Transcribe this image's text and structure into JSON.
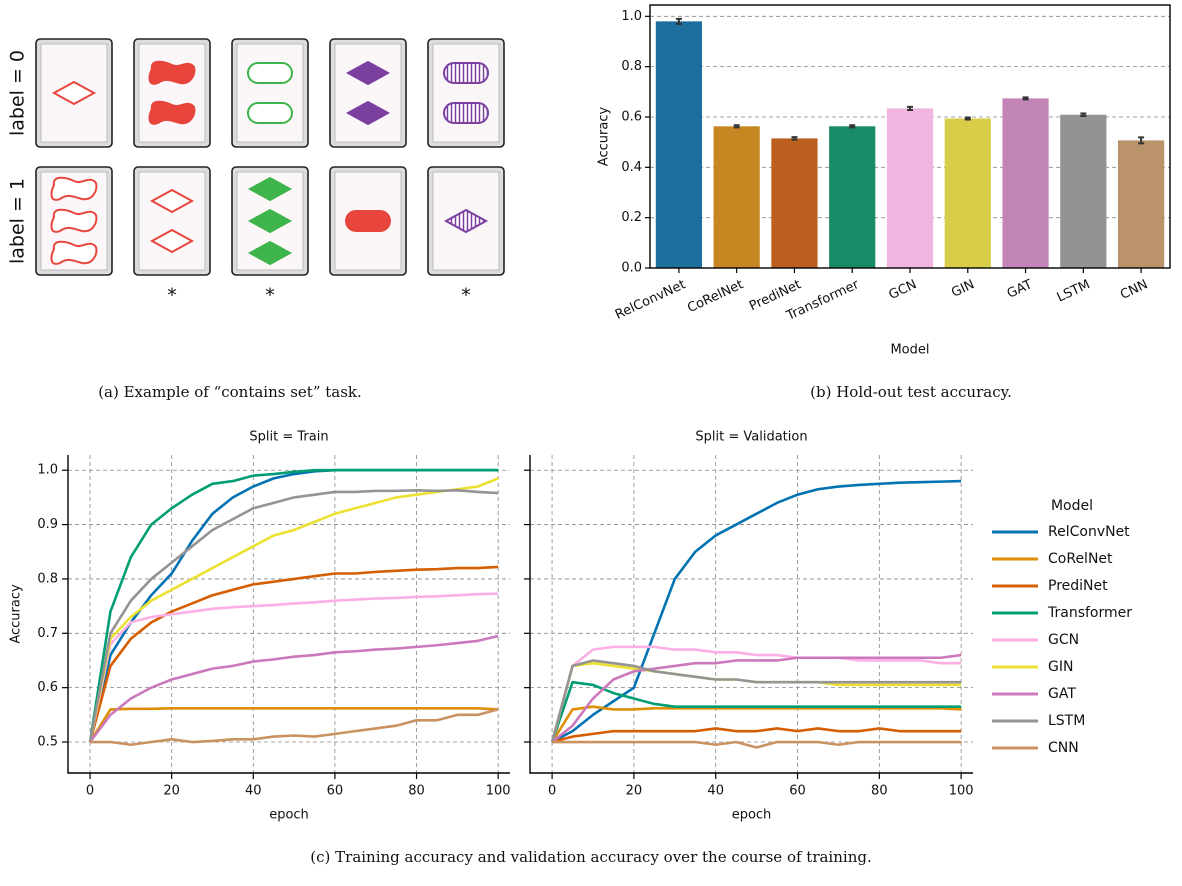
{
  "panel_a": {
    "row_labels": [
      "label = 0",
      "label = 1"
    ],
    "markers": [
      "*",
      "*",
      "*"
    ],
    "caption": "(a) Example of “contains set” task."
  },
  "chart_data": [
    {
      "type": "bar",
      "caption": "(b) Hold-out test accuracy.",
      "xlabel": "Model",
      "ylabel": "Accuracy",
      "categories": [
        "RelConvNet",
        "CoRelNet",
        "PrediNet",
        "Transformer",
        "GCN",
        "GIN",
        "GAT",
        "LSTM",
        "CNN"
      ],
      "values": [
        0.98,
        0.563,
        0.515,
        0.563,
        0.634,
        0.594,
        0.674,
        0.609,
        0.507
      ],
      "errors": [
        0.01,
        0.004,
        0.005,
        0.004,
        0.006,
        0.004,
        0.004,
        0.005,
        0.012
      ],
      "colors": [
        "#1f6f9e",
        "#c68722",
        "#bb5e1e",
        "#178a68",
        "#f0b6df",
        "#d8cd48",
        "#c384b8",
        "#939393",
        "#bb936b"
      ],
      "ylim": [
        0,
        1.045
      ],
      "yticks": [
        {
          "value": 0,
          "label": "0.0"
        },
        0.2,
        0.4,
        0.6,
        0.8,
        {
          "value": 1,
          "label": "1.0"
        }
      ],
      "grid": true
    },
    {
      "type": "line",
      "caption": "(c) Training accuracy and validation accuracy over the course of training.",
      "panel_titles": [
        "Split = Train",
        "Split = Validation"
      ],
      "xlabel": "epoch",
      "ylabel": "Accuracy",
      "legend_title": "Model",
      "legend": "right",
      "grid": true,
      "xlim": [
        -5.4,
        102.9
      ],
      "ylim": [
        0.443,
        1.028
      ],
      "xticks": [
        0,
        20,
        40,
        60,
        80,
        100
      ],
      "yticks": [
        0.5,
        0.6,
        0.7,
        0.8,
        0.9,
        {
          "value": 1,
          "label": "1.0"
        }
      ],
      "x": [
        0,
        5,
        10,
        15,
        20,
        25,
        30,
        35,
        40,
        45,
        50,
        55,
        60,
        65,
        70,
        75,
        80,
        85,
        90,
        95,
        100
      ],
      "series": [
        {
          "name": "RelConvNet",
          "color": "#0173b2",
          "values": [
            [
              0.5,
              0.66,
              0.72,
              0.77,
              0.81,
              0.87,
              0.92,
              0.95,
              0.97,
              0.985,
              0.993,
              0.998,
              1,
              1,
              1,
              1,
              1,
              1,
              1,
              1,
              1
            ],
            [
              0.5,
              0.52,
              0.55,
              0.575,
              0.6,
              0.7,
              0.8,
              0.85,
              0.88,
              0.9,
              0.92,
              0.94,
              0.955,
              0.965,
              0.97,
              0.973,
              0.975,
              0.977,
              0.978,
              0.979,
              0.98
            ]
          ]
        },
        {
          "name": "CoRelNet",
          "color": "#de8f05",
          "values": [
            [
              0.5,
              0.56,
              0.561,
              0.561,
              0.562,
              0.562,
              0.562,
              0.562,
              0.562,
              0.562,
              0.562,
              0.562,
              0.562,
              0.562,
              0.562,
              0.562,
              0.562,
              0.562,
              0.562,
              0.562,
              0.56
            ],
            [
              0.5,
              0.56,
              0.565,
              0.56,
              0.56,
              0.562,
              0.562,
              0.562,
              0.562,
              0.562,
              0.562,
              0.562,
              0.562,
              0.562,
              0.562,
              0.562,
              0.562,
              0.562,
              0.562,
              0.562,
              0.56
            ]
          ]
        },
        {
          "name": "PrediNet",
          "color": "#d55e00",
          "values": [
            [
              0.5,
              0.64,
              0.69,
              0.72,
              0.74,
              0.755,
              0.77,
              0.78,
              0.79,
              0.795,
              0.8,
              0.805,
              0.81,
              0.81,
              0.813,
              0.815,
              0.817,
              0.818,
              0.82,
              0.82,
              0.822
            ],
            [
              0.5,
              0.51,
              0.515,
              0.52,
              0.52,
              0.52,
              0.52,
              0.52,
              0.525,
              0.52,
              0.52,
              0.525,
              0.52,
              0.525,
              0.52,
              0.52,
              0.525,
              0.52,
              0.52,
              0.52,
              0.52
            ]
          ]
        },
        {
          "name": "Transformer",
          "color": "#029e73",
          "values": [
            [
              0.5,
              0.74,
              0.84,
              0.9,
              0.93,
              0.955,
              0.975,
              0.98,
              0.99,
              0.993,
              0.997,
              1,
              1,
              1,
              1,
              1,
              1,
              1,
              1,
              1,
              1
            ],
            [
              0.5,
              0.61,
              0.605,
              0.59,
              0.58,
              0.57,
              0.565,
              0.565,
              0.565,
              0.565,
              0.565,
              0.565,
              0.565,
              0.565,
              0.565,
              0.565,
              0.565,
              0.565,
              0.565,
              0.565,
              0.565
            ]
          ]
        },
        {
          "name": "GCN",
          "color": "#fbafe4",
          "values": [
            [
              0.5,
              0.68,
              0.72,
              0.73,
              0.735,
              0.74,
              0.745,
              0.748,
              0.75,
              0.752,
              0.755,
              0.757,
              0.76,
              0.762,
              0.764,
              0.765,
              0.767,
              0.768,
              0.77,
              0.772,
              0.773
            ],
            [
              0.5,
              0.64,
              0.67,
              0.675,
              0.675,
              0.675,
              0.67,
              0.67,
              0.665,
              0.665,
              0.66,
              0.66,
              0.655,
              0.655,
              0.655,
              0.65,
              0.65,
              0.65,
              0.65,
              0.645,
              0.645
            ]
          ]
        },
        {
          "name": "GIN",
          "color": "#ece133",
          "values": [
            [
              0.5,
              0.69,
              0.73,
              0.76,
              0.78,
              0.8,
              0.82,
              0.84,
              0.86,
              0.88,
              0.89,
              0.905,
              0.92,
              0.93,
              0.94,
              0.95,
              0.955,
              0.96,
              0.965,
              0.97,
              0.985
            ],
            [
              0.5,
              0.64,
              0.645,
              0.64,
              0.635,
              0.63,
              0.625,
              0.62,
              0.615,
              0.615,
              0.61,
              0.61,
              0.61,
              0.61,
              0.605,
              0.605,
              0.605,
              0.605,
              0.605,
              0.605,
              0.605
            ]
          ]
        },
        {
          "name": "GAT",
          "color": "#cc78bc",
          "values": [
            [
              0.5,
              0.55,
              0.58,
              0.6,
              0.615,
              0.625,
              0.635,
              0.64,
              0.648,
              0.652,
              0.657,
              0.66,
              0.665,
              0.667,
              0.67,
              0.672,
              0.675,
              0.678,
              0.682,
              0.686,
              0.695
            ],
            [
              0.5,
              0.53,
              0.58,
              0.615,
              0.63,
              0.635,
              0.64,
              0.645,
              0.645,
              0.65,
              0.65,
              0.65,
              0.655,
              0.655,
              0.655,
              0.655,
              0.655,
              0.655,
              0.655,
              0.655,
              0.66
            ]
          ]
        },
        {
          "name": "LSTM",
          "color": "#949494",
          "values": [
            [
              0.5,
              0.7,
              0.76,
              0.8,
              0.83,
              0.86,
              0.89,
              0.91,
              0.93,
              0.94,
              0.95,
              0.955,
              0.96,
              0.96,
              0.962,
              0.962,
              0.963,
              0.962,
              0.963,
              0.96,
              0.958
            ],
            [
              0.5,
              0.64,
              0.65,
              0.645,
              0.64,
              0.63,
              0.625,
              0.62,
              0.615,
              0.615,
              0.61,
              0.61,
              0.61,
              0.61,
              0.61,
              0.61,
              0.61,
              0.61,
              0.61,
              0.61,
              0.61
            ]
          ]
        },
        {
          "name": "CNN",
          "color": "#ca9161",
          "values": [
            [
              0.5,
              0.5,
              0.495,
              0.5,
              0.505,
              0.5,
              0.502,
              0.505,
              0.505,
              0.51,
              0.512,
              0.51,
              0.515,
              0.52,
              0.525,
              0.53,
              0.54,
              0.54,
              0.55,
              0.55,
              0.56
            ],
            [
              0.5,
              0.5,
              0.5,
              0.5,
              0.5,
              0.5,
              0.5,
              0.5,
              0.495,
              0.5,
              0.49,
              0.5,
              0.5,
              0.5,
              0.495,
              0.5,
              0.5,
              0.5,
              0.5,
              0.5,
              0.5
            ]
          ]
        }
      ]
    }
  ]
}
